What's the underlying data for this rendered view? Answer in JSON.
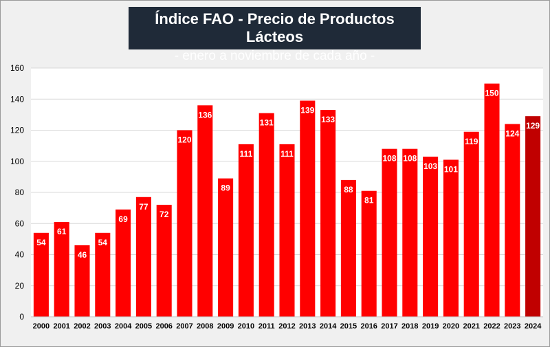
{
  "title": "Índice FAO - Precio de Productos Lácteos",
  "subtitle": "- enero a noviembre de cada año -",
  "colors": {
    "bar": "#ff0000",
    "highlight": "#c00000",
    "title_bg": "#1f2a38",
    "grid": "#d9d9d9",
    "background": "#f0f0f0",
    "plot_bg": "#ffffff"
  },
  "chart_data": {
    "type": "bar",
    "title": "Índice FAO - Precio de Productos Lácteos",
    "subtitle": "- enero a noviembre de cada año -",
    "xlabel": "",
    "ylabel": "",
    "ylim": [
      0,
      160
    ],
    "yticks": [
      0,
      20,
      40,
      60,
      80,
      100,
      120,
      140,
      160
    ],
    "grid": true,
    "categories": [
      "2000",
      "2001",
      "2002",
      "2003",
      "2004",
      "2005",
      "2006",
      "2007",
      "2008",
      "2009",
      "2010",
      "2011",
      "2012",
      "2013",
      "2014",
      "2015",
      "2016",
      "2017",
      "2018",
      "2019",
      "2020",
      "2021",
      "2022",
      "2023",
      "2024"
    ],
    "values": [
      54,
      61,
      46,
      54,
      69,
      77,
      72,
      120,
      136,
      89,
      111,
      131,
      111,
      139,
      133,
      88,
      81,
      108,
      108,
      103,
      101,
      119,
      150,
      124,
      129
    ],
    "highlight_category": "2024"
  }
}
